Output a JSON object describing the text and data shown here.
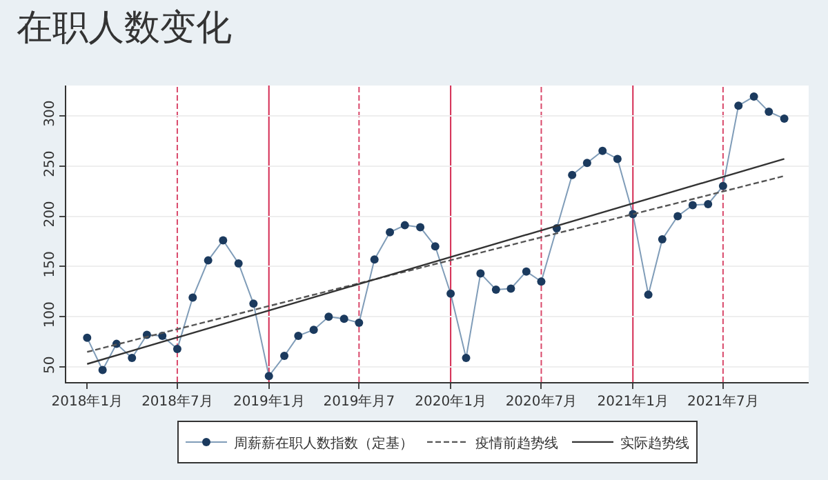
{
  "chart_data": {
    "type": "line",
    "title": "在职人数变化",
    "x": [
      "2018-01",
      "2018-02",
      "2018-03",
      "2018-04",
      "2018-05",
      "2018-06",
      "2018-07",
      "2018-08",
      "2018-09",
      "2018-10",
      "2018-11",
      "2018-12",
      "2019-01",
      "2019-02",
      "2019-03",
      "2019-04",
      "2019-05",
      "2019-06",
      "2019-07",
      "2019-08",
      "2019-09",
      "2019-10",
      "2019-11",
      "2019-12",
      "2020-01",
      "2020-02",
      "2020-03",
      "2020-04",
      "2020-05",
      "2020-06",
      "2020-07",
      "2020-08",
      "2020-09",
      "2020-10",
      "2020-11",
      "2020-12",
      "2021-01",
      "2021-02",
      "2021-03",
      "2021-04",
      "2021-05",
      "2021-06",
      "2021-07",
      "2021-08",
      "2021-09",
      "2021-10",
      "2021-11"
    ],
    "series": [
      {
        "name": "周薪薪在职人数指数（定基）",
        "color": "#1b3a5e",
        "marker": "circle",
        "line_style": "solid",
        "values": [
          79,
          47,
          73,
          59,
          82,
          81,
          68,
          119,
          156,
          176,
          153,
          113,
          41,
          61,
          81,
          87,
          100,
          98,
          94,
          157,
          184,
          191,
          189,
          170,
          123,
          59,
          143,
          127,
          128,
          145,
          135,
          188,
          241,
          253,
          265,
          257,
          202,
          122,
          177,
          200,
          211,
          212,
          230,
          310,
          319,
          304,
          297
        ]
      },
      {
        "name": "疫情前趋势线",
        "color": "#555555",
        "marker": "none",
        "line_style": "dashed",
        "x": [
          "2018-01",
          "2021-11"
        ],
        "values": [
          65,
          240
        ]
      },
      {
        "name": "实际趋势线",
        "color": "#333333",
        "marker": "none",
        "line_style": "solid",
        "x": [
          "2018-01",
          "2021-11"
        ],
        "values": [
          53,
          257
        ]
      }
    ],
    "xlim": [
      "2017-11-20",
      "2021-12-20"
    ],
    "xticks": [
      {
        "value": "2018-01",
        "label": "2018年1月"
      },
      {
        "value": "2018-07",
        "label": "2018年7月"
      },
      {
        "value": "2019-01",
        "label": "2019年1月"
      },
      {
        "value": "2019-07",
        "label": "2019年月7"
      },
      {
        "value": "2020-01",
        "label": "2020年1月"
      },
      {
        "value": "2020-07",
        "label": "2020年7月"
      },
      {
        "value": "2021-01",
        "label": "2021年1月"
      },
      {
        "value": "2021-07",
        "label": "2021年7月"
      }
    ],
    "ylim": [
      35,
      330
    ],
    "yticks": [
      50,
      100,
      150,
      200,
      250,
      300
    ],
    "grid": "y",
    "legend": "bottom",
    "ref_lines": [
      {
        "axis": "x",
        "value": "2018-07",
        "color": "#d9486a",
        "line_style": "dashed"
      },
      {
        "axis": "x",
        "value": "2019-01",
        "color": "#d42a52",
        "line_style": "solid"
      },
      {
        "axis": "x",
        "value": "2019-07",
        "color": "#d9486a",
        "line_style": "dashed"
      },
      {
        "axis": "x",
        "value": "2020-01",
        "color": "#d42a52",
        "line_style": "solid"
      },
      {
        "axis": "x",
        "value": "2020-07",
        "color": "#d9486a",
        "line_style": "dashed"
      },
      {
        "axis": "x",
        "value": "2021-01",
        "color": "#d42a52",
        "line_style": "solid"
      },
      {
        "axis": "x",
        "value": "2021-07",
        "color": "#d9486a",
        "line_style": "dashed"
      }
    ]
  }
}
